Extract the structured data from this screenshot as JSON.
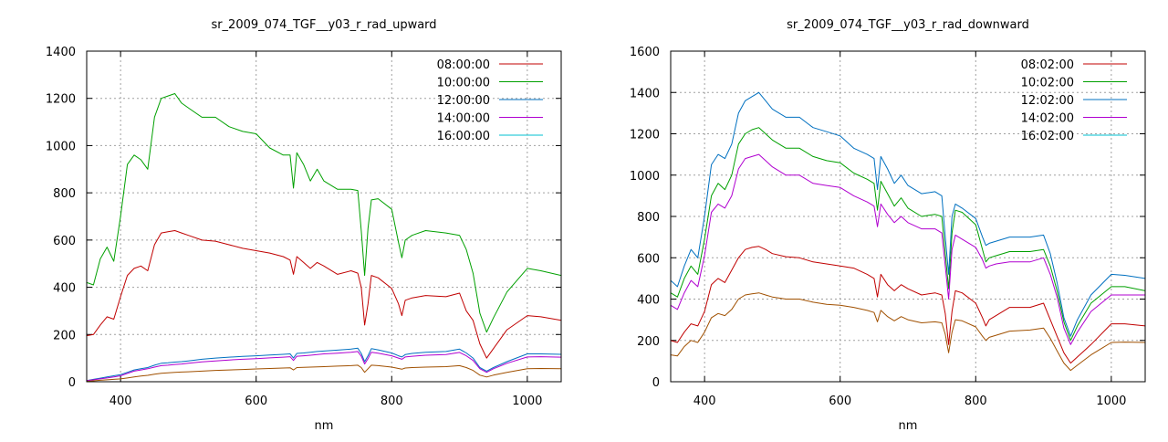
{
  "chart_data": [
    {
      "type": "line",
      "title": "sr_2009_074_TGF__y03_r_rad_upward",
      "xlabel": "nm",
      "ylabel": "",
      "xlim": [
        350,
        1050
      ],
      "ylim": [
        0,
        1400
      ],
      "xticks": [
        400,
        600,
        800,
        1000
      ],
      "yticks": [
        0,
        200,
        400,
        600,
        800,
        1000,
        1200,
        1400
      ],
      "grid": true,
      "legend_position": "top-right",
      "x": [
        350,
        360,
        370,
        380,
        390,
        400,
        410,
        420,
        430,
        440,
        450,
        460,
        470,
        480,
        490,
        500,
        520,
        540,
        560,
        580,
        600,
        620,
        640,
        650,
        655,
        660,
        670,
        680,
        690,
        700,
        720,
        740,
        750,
        755,
        760,
        765,
        770,
        780,
        800,
        810,
        815,
        820,
        830,
        850,
        880,
        900,
        910,
        920,
        930,
        940,
        950,
        970,
        1000,
        1020,
        1050
      ],
      "series": [
        {
          "name": "08:00:00",
          "color": "#c00000",
          "values": [
            195,
            200,
            240,
            275,
            265,
            360,
            450,
            480,
            490,
            470,
            580,
            630,
            635,
            640,
            630,
            620,
            600,
            595,
            580,
            565,
            555,
            545,
            530,
            515,
            455,
            530,
            505,
            480,
            505,
            490,
            455,
            470,
            460,
            400,
            240,
            330,
            450,
            440,
            395,
            330,
            280,
            345,
            355,
            365,
            360,
            375,
            300,
            260,
            160,
            100,
            140,
            220,
            280,
            275,
            260
          ]
        },
        {
          "name": "10:00:00",
          "color": "#00a000",
          "values": [
            420,
            410,
            520,
            570,
            510,
            700,
            920,
            960,
            940,
            900,
            1120,
            1200,
            1210,
            1220,
            1180,
            1160,
            1120,
            1120,
            1080,
            1060,
            1050,
            990,
            960,
            960,
            820,
            970,
            920,
            850,
            900,
            850,
            815,
            815,
            810,
            640,
            450,
            650,
            770,
            775,
            730,
            590,
            525,
            600,
            620,
            640,
            630,
            620,
            560,
            460,
            290,
            210,
            270,
            380,
            480,
            470,
            450
          ]
        },
        {
          "name": "12:00:00",
          "color": "#0070c0",
          "values": [
            5,
            10,
            15,
            20,
            25,
            30,
            40,
            50,
            55,
            60,
            70,
            78,
            80,
            83,
            85,
            88,
            95,
            100,
            104,
            107,
            110,
            113,
            116,
            118,
            100,
            120,
            122,
            125,
            128,
            130,
            134,
            138,
            142,
            120,
            85,
            110,
            140,
            135,
            122,
            110,
            105,
            115,
            120,
            125,
            128,
            138,
            122,
            100,
            60,
            45,
            60,
            85,
            118,
            118,
            116
          ]
        },
        {
          "name": "14:00:00",
          "color": "#b000d0",
          "values": [
            5,
            8,
            12,
            16,
            20,
            25,
            35,
            45,
            50,
            55,
            62,
            68,
            70,
            73,
            75,
            78,
            84,
            88,
            92,
            95,
            98,
            101,
            104,
            106,
            90,
            108,
            110,
            112,
            115,
            118,
            121,
            125,
            128,
            108,
            75,
            98,
            125,
            121,
            110,
            100,
            95,
            105,
            108,
            112,
            115,
            124,
            110,
            90,
            55,
            40,
            55,
            78,
            105,
            106,
            104
          ]
        },
        {
          "name": "16:00:00",
          "color": "#00c0d0",
          "values": [
            null,
            null,
            null,
            null,
            null,
            null,
            null,
            null,
            null,
            null,
            null,
            null,
            null,
            null,
            null,
            null,
            null,
            null,
            null,
            null,
            null,
            null,
            null,
            null,
            null,
            null,
            null,
            null,
            null,
            null,
            null,
            null,
            null,
            null,
            null,
            null,
            null,
            null,
            null,
            null,
            null,
            null,
            null,
            null,
            null,
            null,
            null,
            null,
            null,
            null,
            null,
            null,
            null,
            null,
            null
          ]
        },
        {
          "name": "",
          "color": "#a05000",
          "values": [
            2,
            4,
            6,
            8,
            10,
            12,
            16,
            20,
            24,
            27,
            32,
            36,
            38,
            40,
            41,
            42,
            45,
            48,
            50,
            52,
            54,
            56,
            58,
            59,
            50,
            60,
            61,
            62,
            63,
            64,
            66,
            68,
            70,
            60,
            40,
            55,
            70,
            68,
            62,
            56,
            53,
            58,
            60,
            62,
            64,
            68,
            60,
            48,
            28,
            20,
            28,
            40,
            55,
            56,
            55
          ]
        }
      ]
    },
    {
      "type": "line",
      "title": "sr_2009_074_TGF__y03_r_rad_downward",
      "xlabel": "nm",
      "ylabel": "",
      "xlim": [
        350,
        1050
      ],
      "ylim": [
        0,
        1600
      ],
      "xticks": [
        400,
        600,
        800,
        1000
      ],
      "yticks": [
        0,
        200,
        400,
        600,
        800,
        1000,
        1200,
        1400,
        1600
      ],
      "grid": true,
      "legend_position": "top-right",
      "x": [
        350,
        360,
        370,
        380,
        390,
        400,
        410,
        420,
        430,
        440,
        450,
        460,
        470,
        480,
        490,
        500,
        520,
        540,
        560,
        580,
        600,
        620,
        640,
        650,
        655,
        660,
        670,
        680,
        690,
        700,
        720,
        740,
        750,
        755,
        760,
        765,
        770,
        780,
        800,
        810,
        815,
        820,
        830,
        850,
        880,
        900,
        910,
        920,
        930,
        940,
        950,
        970,
        1000,
        1020,
        1050
      ],
      "series": [
        {
          "name": "08:02:00",
          "color": "#c00000",
          "values": [
            200,
            190,
            240,
            280,
            270,
            340,
            470,
            500,
            480,
            540,
            600,
            640,
            650,
            655,
            640,
            620,
            605,
            600,
            580,
            570,
            560,
            550,
            520,
            500,
            410,
            520,
            470,
            440,
            470,
            450,
            420,
            430,
            420,
            330,
            180,
            340,
            440,
            430,
            380,
            310,
            270,
            300,
            320,
            360,
            360,
            380,
            300,
            220,
            140,
            90,
            120,
            180,
            280,
            280,
            270
          ]
        },
        {
          "name": "10:02:00",
          "color": "#00a000",
          "values": [
            430,
            410,
            500,
            560,
            520,
            690,
            900,
            960,
            930,
            1000,
            1150,
            1200,
            1220,
            1230,
            1200,
            1170,
            1130,
            1130,
            1090,
            1070,
            1060,
            1010,
            980,
            960,
            830,
            970,
            910,
            850,
            890,
            840,
            800,
            810,
            800,
            620,
            450,
            720,
            830,
            820,
            760,
            640,
            580,
            600,
            610,
            630,
            630,
            640,
            560,
            440,
            290,
            200,
            270,
            380,
            460,
            460,
            440
          ]
        },
        {
          "name": "12:02:00",
          "color": "#0070c0",
          "values": [
            490,
            460,
            560,
            640,
            600,
            800,
            1050,
            1100,
            1080,
            1150,
            1300,
            1360,
            1380,
            1400,
            1360,
            1320,
            1280,
            1280,
            1230,
            1210,
            1190,
            1130,
            1100,
            1080,
            930,
            1090,
            1030,
            960,
            1000,
            950,
            910,
            920,
            900,
            700,
            520,
            800,
            860,
            840,
            790,
            700,
            660,
            670,
            680,
            700,
            700,
            710,
            620,
            480,
            310,
            220,
            300,
            420,
            520,
            515,
            500
          ]
        },
        {
          "name": "14:02:00",
          "color": "#b000d0",
          "values": [
            370,
            350,
            430,
            490,
            460,
            610,
            820,
            860,
            840,
            900,
            1030,
            1080,
            1090,
            1100,
            1070,
            1040,
            1000,
            1000,
            960,
            950,
            940,
            900,
            870,
            850,
            750,
            860,
            810,
            770,
            800,
            770,
            740,
            740,
            720,
            560,
            400,
            640,
            710,
            690,
            650,
            590,
            550,
            560,
            570,
            580,
            580,
            600,
            520,
            410,
            260,
            180,
            240,
            340,
            420,
            420,
            420
          ]
        },
        {
          "name": "16:02:00",
          "color": "#00c0d0",
          "values": [
            null,
            null,
            null,
            null,
            null,
            null,
            null,
            null,
            null,
            null,
            null,
            null,
            null,
            null,
            null,
            null,
            null,
            null,
            null,
            null,
            null,
            null,
            null,
            null,
            null,
            null,
            null,
            null,
            null,
            null,
            null,
            null,
            null,
            null,
            null,
            null,
            null,
            null,
            null,
            null,
            null,
            null,
            null,
            null,
            null,
            null,
            null,
            null,
            null,
            null,
            null,
            null,
            null,
            null,
            null
          ]
        },
        {
          "name": "",
          "color": "#a05000",
          "values": [
            130,
            125,
            170,
            200,
            190,
            240,
            310,
            330,
            320,
            350,
            400,
            420,
            425,
            430,
            420,
            410,
            400,
            400,
            385,
            375,
            370,
            360,
            345,
            335,
            290,
            345,
            315,
            295,
            315,
            300,
            285,
            290,
            285,
            230,
            140,
            240,
            300,
            295,
            265,
            220,
            200,
            215,
            225,
            245,
            250,
            260,
            210,
            150,
            90,
            55,
            80,
            130,
            190,
            192,
            190
          ]
        }
      ]
    }
  ]
}
